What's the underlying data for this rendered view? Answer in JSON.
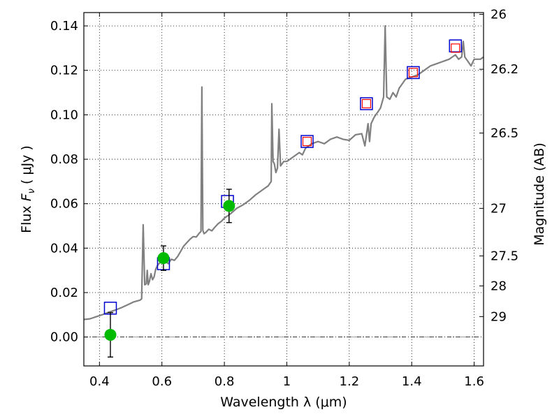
{
  "chart_data": {
    "type": "scatter",
    "xlabel": "Wavelength  λ (μm)",
    "ylabel_parts": [
      "Flux  ",
      "F",
      "ν",
      "  ( μJy )"
    ],
    "ylabel_right": "Magnitude (AB)",
    "xlim": [
      0.35,
      1.63
    ],
    "ylim": [
      -0.013,
      0.146
    ],
    "grid": true,
    "x_ticks": [
      0.4,
      0.6,
      0.8,
      1.0,
      1.2,
      1.4,
      1.6
    ],
    "x_tick_labels": [
      "0.4",
      "0.6",
      "0.8",
      "1",
      "1.2",
      "1.4",
      "1.6"
    ],
    "y_ticks": [
      0.0,
      0.02,
      0.04,
      0.06,
      0.08,
      0.1,
      0.12,
      0.14
    ],
    "y_tick_labels": [
      "0.00",
      "0.02",
      "0.04",
      "0.06",
      "0.08",
      "0.10",
      "0.12",
      "0.14"
    ],
    "right_ticks": [
      {
        "flux": 0.1452,
        "label": "26"
      },
      {
        "flux": 0.1205,
        "label": "26.2"
      },
      {
        "flux": 0.0918,
        "label": "26.5"
      },
      {
        "flux": 0.0579,
        "label": "27"
      },
      {
        "flux": 0.0365,
        "label": "27.5"
      },
      {
        "flux": 0.023,
        "label": "28"
      },
      {
        "flux": 0.0092,
        "label": "29"
      }
    ],
    "series": [
      {
        "kind": "line",
        "color": "#808080",
        "points": [
          [
            0.35,
            0.0079
          ],
          [
            0.37,
            0.0082
          ],
          [
            0.39,
            0.0092
          ],
          [
            0.41,
            0.0101
          ],
          [
            0.43,
            0.0112
          ],
          [
            0.45,
            0.0121
          ],
          [
            0.47,
            0.0132
          ],
          [
            0.49,
            0.0145
          ],
          [
            0.51,
            0.0158
          ],
          [
            0.53,
            0.0166
          ],
          [
            0.535,
            0.0172
          ],
          [
            0.54,
            0.0505
          ],
          [
            0.545,
            0.0235
          ],
          [
            0.55,
            0.024
          ],
          [
            0.553,
            0.03
          ],
          [
            0.556,
            0.0235
          ],
          [
            0.56,
            0.025
          ],
          [
            0.565,
            0.0285
          ],
          [
            0.57,
            0.0258
          ],
          [
            0.575,
            0.027
          ],
          [
            0.58,
            0.0305
          ],
          [
            0.585,
            0.032
          ],
          [
            0.59,
            0.033
          ],
          [
            0.6,
            0.034
          ],
          [
            0.61,
            0.0343
          ],
          [
            0.62,
            0.033
          ],
          [
            0.63,
            0.035
          ],
          [
            0.64,
            0.0345
          ],
          [
            0.65,
            0.0362
          ],
          [
            0.66,
            0.0385
          ],
          [
            0.67,
            0.041
          ],
          [
            0.68,
            0.0425
          ],
          [
            0.69,
            0.044
          ],
          [
            0.7,
            0.0452
          ],
          [
            0.71,
            0.045
          ],
          [
            0.72,
            0.0468
          ],
          [
            0.725,
            0.0475
          ],
          [
            0.728,
            0.1125
          ],
          [
            0.731,
            0.048
          ],
          [
            0.735,
            0.0465
          ],
          [
            0.74,
            0.047
          ],
          [
            0.75,
            0.0485
          ],
          [
            0.76,
            0.0478
          ],
          [
            0.77,
            0.0495
          ],
          [
            0.78,
            0.051
          ],
          [
            0.79,
            0.052
          ],
          [
            0.8,
            0.0535
          ],
          [
            0.82,
            0.0555
          ],
          [
            0.84,
            0.058
          ],
          [
            0.86,
            0.0595
          ],
          [
            0.88,
            0.0615
          ],
          [
            0.9,
            0.064
          ],
          [
            0.92,
            0.066
          ],
          [
            0.94,
            0.068
          ],
          [
            0.95,
            0.07
          ],
          [
            0.952,
            0.105
          ],
          [
            0.956,
            0.079
          ],
          [
            0.96,
            0.078
          ],
          [
            0.965,
            0.074
          ],
          [
            0.97,
            0.076
          ],
          [
            0.975,
            0.0935
          ],
          [
            0.98,
            0.077
          ],
          [
            0.99,
            0.079
          ],
          [
            1.0,
            0.079
          ],
          [
            1.02,
            0.081
          ],
          [
            1.04,
            0.083
          ],
          [
            1.05,
            0.082
          ],
          [
            1.06,
            0.085
          ],
          [
            1.08,
            0.087
          ],
          [
            1.1,
            0.088
          ],
          [
            1.12,
            0.087
          ],
          [
            1.14,
            0.089
          ],
          [
            1.16,
            0.09
          ],
          [
            1.18,
            0.089
          ],
          [
            1.2,
            0.0885
          ],
          [
            1.22,
            0.091
          ],
          [
            1.24,
            0.0915
          ],
          [
            1.25,
            0.086
          ],
          [
            1.26,
            0.096
          ],
          [
            1.265,
            0.088
          ],
          [
            1.27,
            0.096
          ],
          [
            1.28,
            0.099
          ],
          [
            1.29,
            0.101
          ],
          [
            1.3,
            0.103
          ],
          [
            1.31,
            0.108
          ],
          [
            1.315,
            0.14
          ],
          [
            1.32,
            0.108
          ],
          [
            1.33,
            0.107
          ],
          [
            1.34,
            0.11
          ],
          [
            1.35,
            0.108
          ],
          [
            1.36,
            0.112
          ],
          [
            1.38,
            0.116
          ],
          [
            1.4,
            0.117
          ],
          [
            1.42,
            0.118
          ],
          [
            1.44,
            0.12
          ],
          [
            1.46,
            0.122
          ],
          [
            1.48,
            0.123
          ],
          [
            1.5,
            0.124
          ],
          [
            1.52,
            0.125
          ],
          [
            1.53,
            0.126
          ],
          [
            1.54,
            0.127
          ],
          [
            1.55,
            0.125
          ],
          [
            1.56,
            0.126
          ],
          [
            1.565,
            0.133
          ],
          [
            1.57,
            0.126
          ],
          [
            1.58,
            0.124
          ],
          [
            1.59,
            0.122
          ],
          [
            1.6,
            0.125
          ],
          [
            1.62,
            0.125
          ],
          [
            1.63,
            0.126
          ]
        ]
      },
      {
        "kind": "blue-squares",
        "color": "#0000cc",
        "points": [
          [
            0.435,
            0.013
          ],
          [
            0.605,
            0.033
          ],
          [
            0.81,
            0.061
          ],
          [
            1.065,
            0.088
          ],
          [
            1.255,
            0.105
          ],
          [
            1.405,
            0.119
          ],
          [
            1.54,
            0.131
          ]
        ]
      },
      {
        "kind": "red-squares",
        "color": "#ff0000",
        "points": [
          [
            1.065,
            0.088
          ],
          [
            1.255,
            0.105
          ],
          [
            1.405,
            0.119
          ],
          [
            1.54,
            0.13
          ]
        ]
      },
      {
        "kind": "green-points",
        "color": "#00bb00",
        "points": [
          [
            0.435,
            0.001
          ],
          [
            0.605,
            0.0355
          ],
          [
            0.815,
            0.059
          ]
        ],
        "errors": [
          0.01,
          0.0055,
          0.0075
        ]
      }
    ],
    "zero_line": 0.0
  }
}
